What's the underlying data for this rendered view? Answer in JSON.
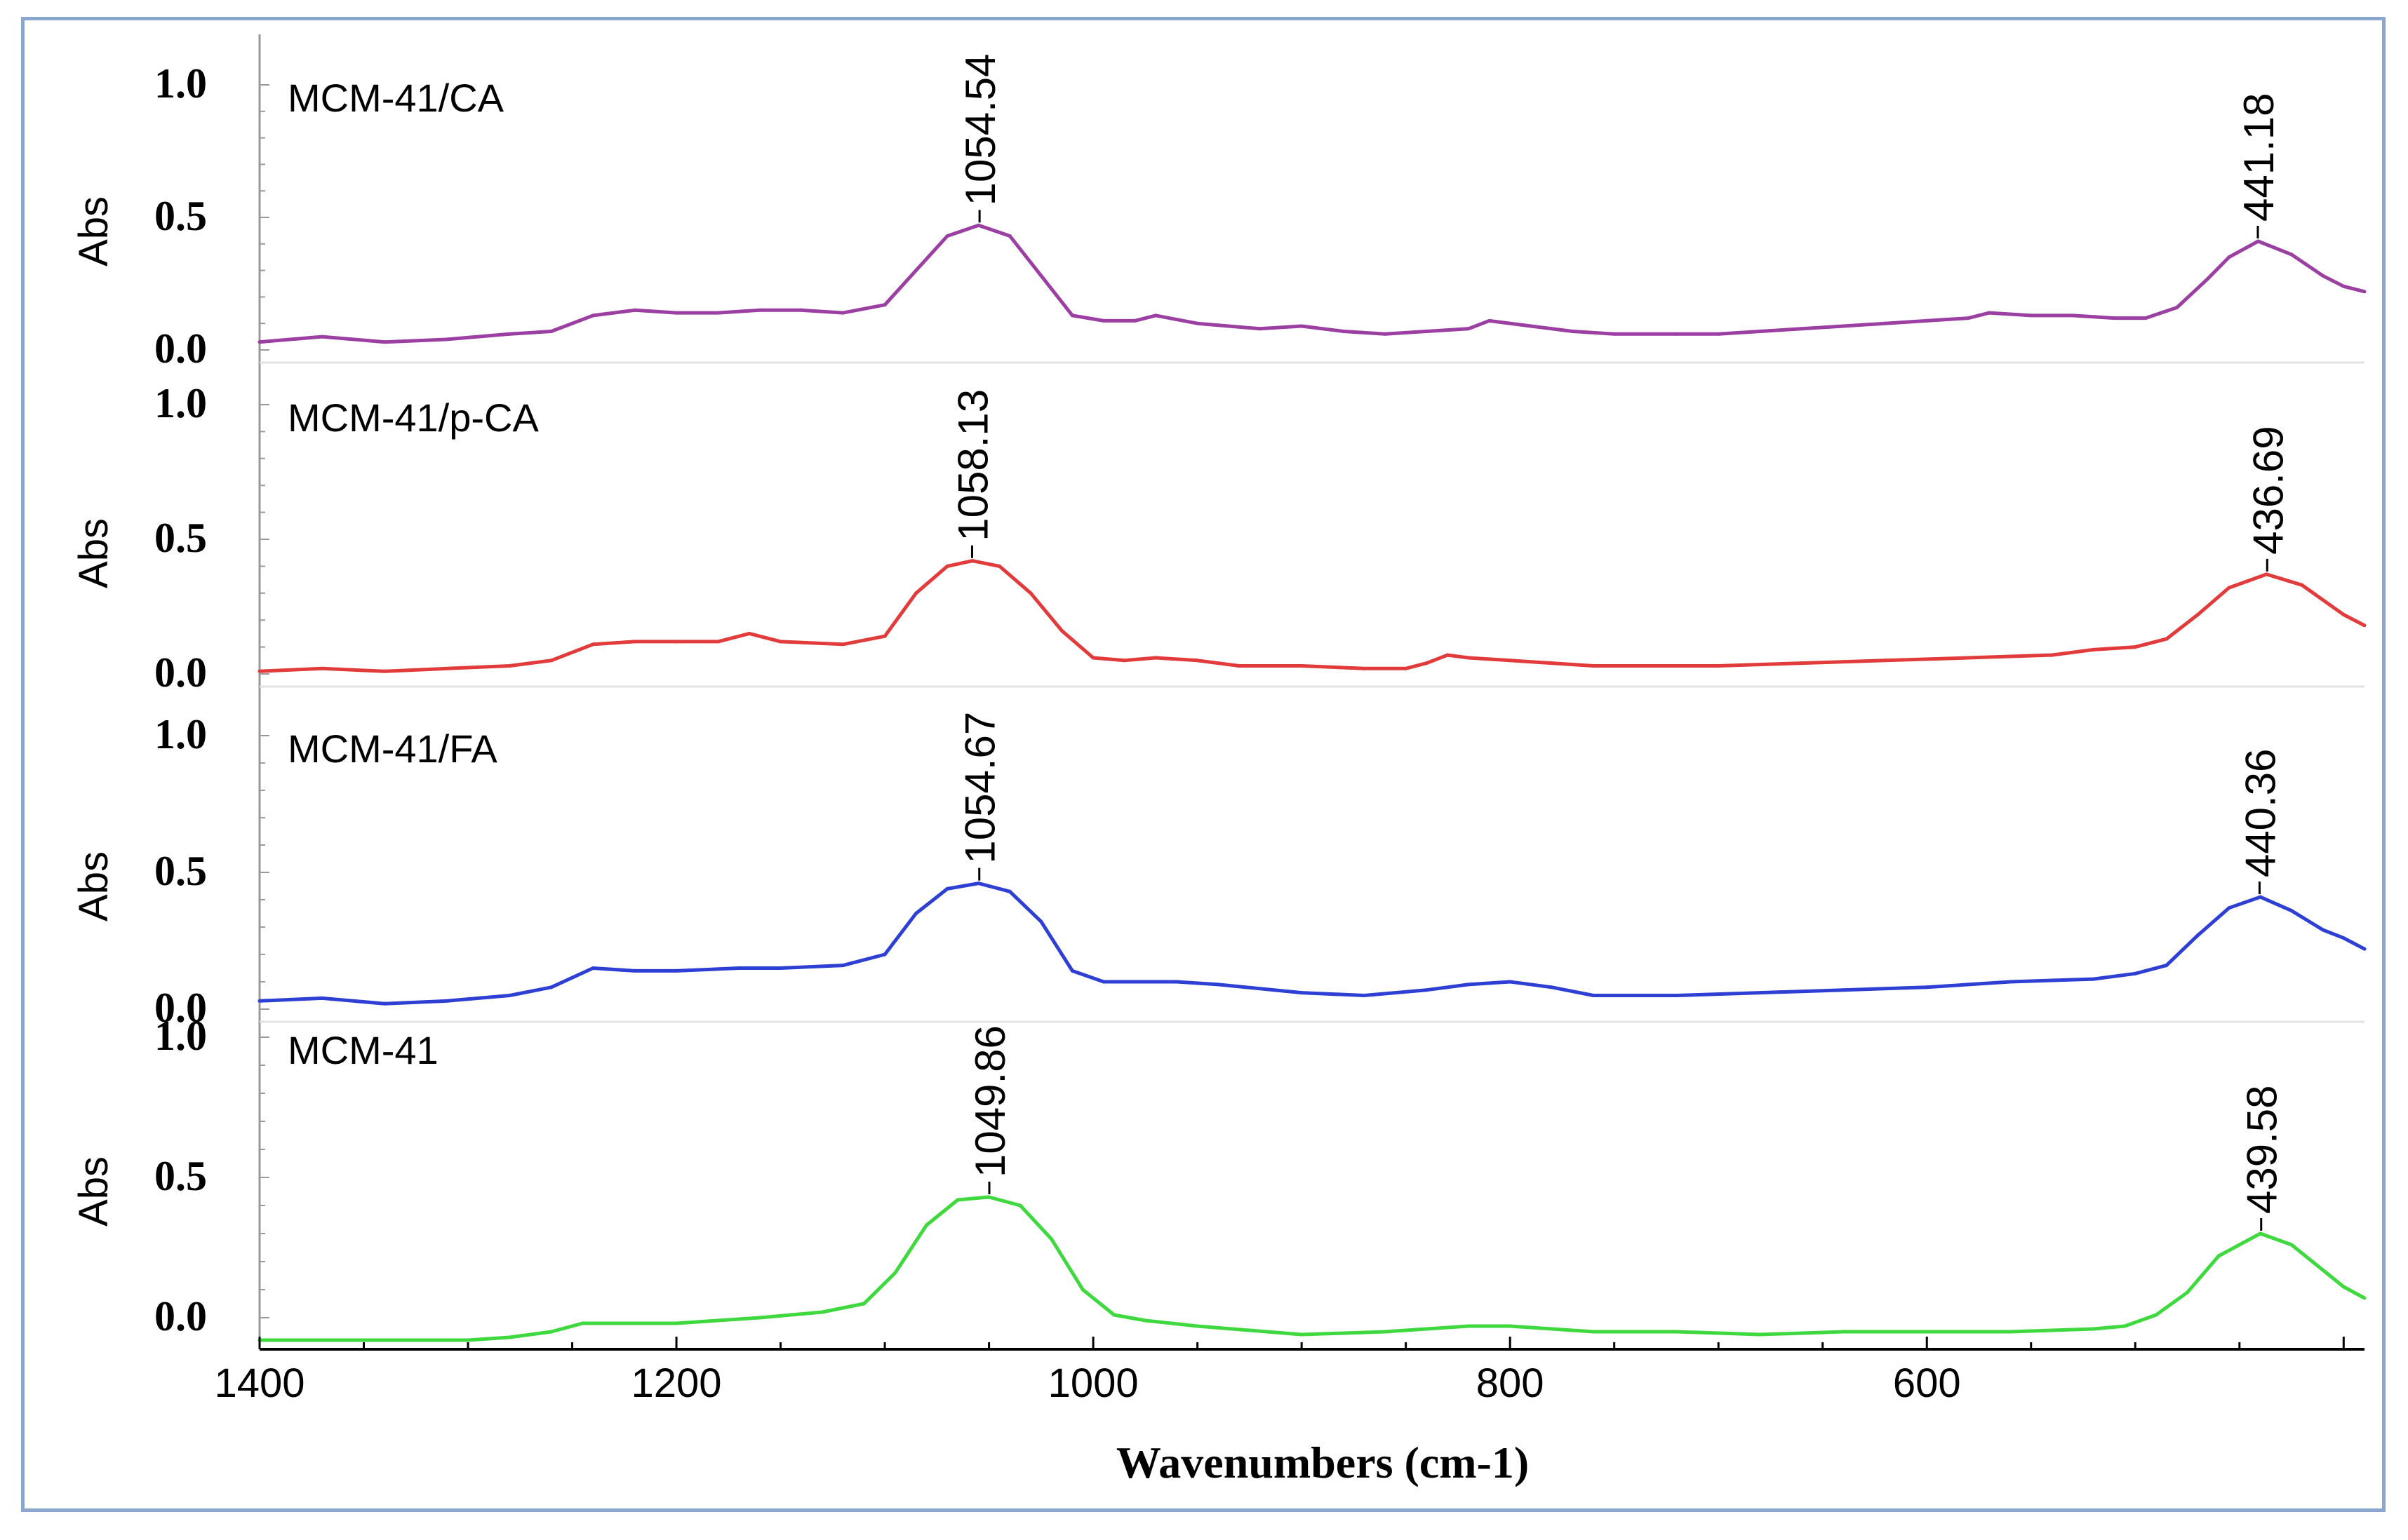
{
  "chart_data": {
    "type": "line",
    "xlabel": "Wavenumbers (cm-1)",
    "xlim": [
      1400,
      390
    ],
    "x_direction": "reversed",
    "x_ticks": [
      1400,
      1200,
      1000,
      800,
      600
    ],
    "panels": [
      {
        "name": "MCM-41/CA",
        "color": "#9b3fa3",
        "ylabel": "Abs",
        "ylim": [
          0.0,
          1.0
        ],
        "y_ticks": [
          "1.0",
          "0.5",
          "0.0"
        ],
        "peaks": [
          {
            "x": 1054.54,
            "label": "1054.54"
          },
          {
            "x": 441.18,
            "label": "441.18"
          }
        ],
        "x": [
          1400,
          1370,
          1340,
          1310,
          1280,
          1260,
          1240,
          1220,
          1200,
          1180,
          1160,
          1140,
          1120,
          1100,
          1085,
          1070,
          1055,
          1040,
          1025,
          1010,
          995,
          980,
          970,
          950,
          920,
          900,
          880,
          860,
          840,
          820,
          810,
          790,
          770,
          750,
          720,
          700,
          680,
          660,
          640,
          620,
          600,
          580,
          570,
          550,
          530,
          510,
          495,
          480,
          465,
          455,
          441,
          425,
          410,
          400,
          390
        ],
        "y": [
          0.03,
          0.05,
          0.03,
          0.04,
          0.06,
          0.07,
          0.13,
          0.15,
          0.14,
          0.14,
          0.15,
          0.15,
          0.14,
          0.17,
          0.3,
          0.43,
          0.47,
          0.43,
          0.28,
          0.13,
          0.11,
          0.11,
          0.13,
          0.1,
          0.08,
          0.09,
          0.07,
          0.06,
          0.07,
          0.08,
          0.11,
          0.09,
          0.07,
          0.06,
          0.06,
          0.06,
          0.07,
          0.08,
          0.09,
          0.1,
          0.11,
          0.12,
          0.14,
          0.13,
          0.13,
          0.12,
          0.12,
          0.16,
          0.27,
          0.35,
          0.41,
          0.36,
          0.28,
          0.24,
          0.22
        ]
      },
      {
        "name": "MCM-41/p-CA",
        "color": "#e23b3b",
        "ylabel": "Abs",
        "ylim": [
          0.0,
          1.0
        ],
        "y_ticks": [
          "1.0",
          "0.5",
          "0.0"
        ],
        "peaks": [
          {
            "x": 1058.13,
            "label": "1058.13"
          },
          {
            "x": 436.69,
            "label": "436.69"
          }
        ],
        "x": [
          1400,
          1370,
          1340,
          1310,
          1280,
          1260,
          1240,
          1220,
          1200,
          1180,
          1165,
          1150,
          1120,
          1100,
          1085,
          1070,
          1058,
          1045,
          1030,
          1015,
          1000,
          985,
          970,
          950,
          930,
          900,
          870,
          850,
          840,
          830,
          820,
          800,
          780,
          760,
          740,
          700,
          660,
          620,
          580,
          540,
          520,
          500,
          485,
          470,
          455,
          437,
          420,
          400,
          390
        ],
        "y": [
          0.01,
          0.02,
          0.01,
          0.02,
          0.03,
          0.05,
          0.11,
          0.12,
          0.12,
          0.12,
          0.15,
          0.12,
          0.11,
          0.14,
          0.3,
          0.4,
          0.42,
          0.4,
          0.3,
          0.16,
          0.06,
          0.05,
          0.06,
          0.05,
          0.03,
          0.03,
          0.02,
          0.02,
          0.04,
          0.07,
          0.06,
          0.05,
          0.04,
          0.03,
          0.03,
          0.03,
          0.04,
          0.05,
          0.06,
          0.07,
          0.09,
          0.1,
          0.13,
          0.22,
          0.32,
          0.37,
          0.33,
          0.22,
          0.18
        ]
      },
      {
        "name": "MCM-41/FA",
        "color": "#2e3fd4",
        "ylabel": "Abs",
        "ylim": [
          0.0,
          1.0
        ],
        "y_ticks": [
          "1.0",
          "0.5",
          "0.0"
        ],
        "peaks": [
          {
            "x": 1054.67,
            "label": "1054.67"
          },
          {
            "x": 440.36,
            "label": "440.36"
          }
        ],
        "x": [
          1400,
          1370,
          1340,
          1310,
          1280,
          1260,
          1240,
          1220,
          1200,
          1170,
          1150,
          1120,
          1100,
          1085,
          1070,
          1055,
          1040,
          1025,
          1010,
          995,
          980,
          960,
          940,
          900,
          870,
          840,
          820,
          800,
          780,
          760,
          720,
          680,
          640,
          600,
          560,
          520,
          500,
          485,
          470,
          455,
          440,
          425,
          410,
          400,
          390
        ],
        "y": [
          0.03,
          0.04,
          0.02,
          0.03,
          0.05,
          0.08,
          0.15,
          0.14,
          0.14,
          0.15,
          0.15,
          0.16,
          0.2,
          0.35,
          0.44,
          0.46,
          0.43,
          0.32,
          0.14,
          0.1,
          0.1,
          0.1,
          0.09,
          0.06,
          0.05,
          0.07,
          0.09,
          0.1,
          0.08,
          0.05,
          0.05,
          0.06,
          0.07,
          0.08,
          0.1,
          0.11,
          0.13,
          0.16,
          0.27,
          0.37,
          0.41,
          0.36,
          0.29,
          0.26,
          0.22
        ]
      },
      {
        "name": "MCM-41",
        "color": "#3fd93f",
        "ylabel": "Abs",
        "ylim": [
          0.0,
          1.0
        ],
        "y_ticks": [
          "1.0",
          "0.5",
          "0.0"
        ],
        "peaks": [
          {
            "x": 1049.86,
            "label": "1049.86"
          },
          {
            "x": 439.58,
            "label": "439.58"
          }
        ],
        "x": [
          1400,
          1340,
          1300,
          1280,
          1260,
          1245,
          1220,
          1200,
          1160,
          1130,
          1110,
          1095,
          1080,
          1065,
          1050,
          1035,
          1020,
          1005,
          990,
          975,
          950,
          900,
          860,
          820,
          800,
          780,
          760,
          720,
          680,
          640,
          600,
          560,
          520,
          505,
          490,
          475,
          460,
          440,
          425,
          410,
          400,
          390
        ],
        "y": [
          -0.08,
          -0.08,
          -0.08,
          -0.07,
          -0.05,
          -0.02,
          -0.02,
          -0.02,
          0.0,
          0.02,
          0.05,
          0.16,
          0.33,
          0.42,
          0.43,
          0.4,
          0.28,
          0.1,
          0.01,
          -0.01,
          -0.03,
          -0.06,
          -0.05,
          -0.03,
          -0.03,
          -0.04,
          -0.05,
          -0.05,
          -0.06,
          -0.05,
          -0.05,
          -0.05,
          -0.04,
          -0.03,
          0.01,
          0.09,
          0.22,
          0.3,
          0.26,
          0.17,
          0.11,
          0.07
        ]
      }
    ]
  }
}
